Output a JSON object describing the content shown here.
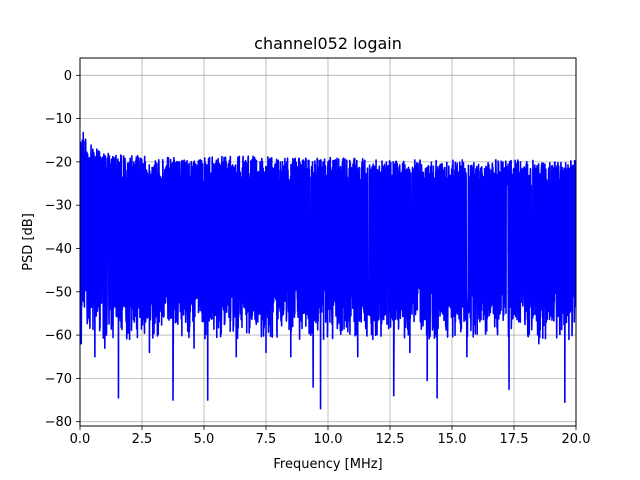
{
  "chart_data": {
    "type": "line",
    "title": "channel052 logain",
    "xlabel": "Frequency [MHz]",
    "ylabel": "PSD [dB]",
    "xlim": [
      0,
      20
    ],
    "ylim": [
      -81,
      4
    ],
    "x_ticks": [
      0,
      2.5,
      5,
      7.5,
      10,
      12.5,
      15,
      17.5,
      20
    ],
    "x_tick_labels": [
      "0.0",
      "2.5",
      "5.0",
      "7.5",
      "10.0",
      "12.5",
      "15.0",
      "17.5",
      "20.0"
    ],
    "y_ticks": [
      0,
      -10,
      -20,
      -30,
      -40,
      -50,
      -60,
      -70,
      -80
    ],
    "y_tick_labels": [
      "0",
      "−10",
      "−20",
      "−30",
      "−40",
      "−50",
      "−60",
      "−70",
      "−80"
    ],
    "grid": true,
    "line_color": "#0000ff",
    "series": [
      {
        "x": [
          0,
          0.1,
          0.2,
          0.3,
          0.5,
          0.8,
          1,
          1.5,
          2,
          2.5,
          3,
          4,
          5,
          6,
          7,
          8,
          9,
          10,
          11,
          12,
          13,
          14,
          15,
          16,
          17,
          18,
          19,
          20
        ],
        "upper": [
          -14,
          -12.5,
          -13.5,
          -15,
          -16,
          -17.5,
          -18,
          -18,
          -18.5,
          -18.5,
          -19,
          -19,
          -19,
          -18.5,
          -18.5,
          -19,
          -19,
          -19,
          -19,
          -19.5,
          -19.5,
          -19.5,
          -19.5,
          -19.5,
          -19.5,
          -19.5,
          -20,
          -19.5
        ],
        "lower": [
          -50,
          -52,
          -54,
          -55,
          -56,
          -56,
          -57,
          -57,
          -57,
          -57,
          -57,
          -57,
          -57,
          -57,
          -57,
          -57,
          -57,
          -57,
          -57,
          -57,
          -57,
          -57,
          -57,
          -57,
          -57,
          -57,
          -57,
          -57
        ]
      }
    ],
    "dips": [
      {
        "x": 0.05,
        "y": -62
      },
      {
        "x": 0.6,
        "y": -65
      },
      {
        "x": 1.0,
        "y": -63
      },
      {
        "x": 1.55,
        "y": -74.5
      },
      {
        "x": 2.8,
        "y": -64
      },
      {
        "x": 3.75,
        "y": -75
      },
      {
        "x": 4.6,
        "y": -63
      },
      {
        "x": 5.15,
        "y": -75
      },
      {
        "x": 6.3,
        "y": -65
      },
      {
        "x": 7.5,
        "y": -64
      },
      {
        "x": 8.5,
        "y": -65
      },
      {
        "x": 9.4,
        "y": -72
      },
      {
        "x": 9.7,
        "y": -77
      },
      {
        "x": 11.2,
        "y": -65
      },
      {
        "x": 12.65,
        "y": -74
      },
      {
        "x": 13.3,
        "y": -64
      },
      {
        "x": 14.0,
        "y": -70.5
      },
      {
        "x": 14.4,
        "y": -74.5
      },
      {
        "x": 15.6,
        "y": -65
      },
      {
        "x": 17.3,
        "y": -72.5
      },
      {
        "x": 18.5,
        "y": -62
      },
      {
        "x": 19.55,
        "y": -75.5
      }
    ]
  }
}
